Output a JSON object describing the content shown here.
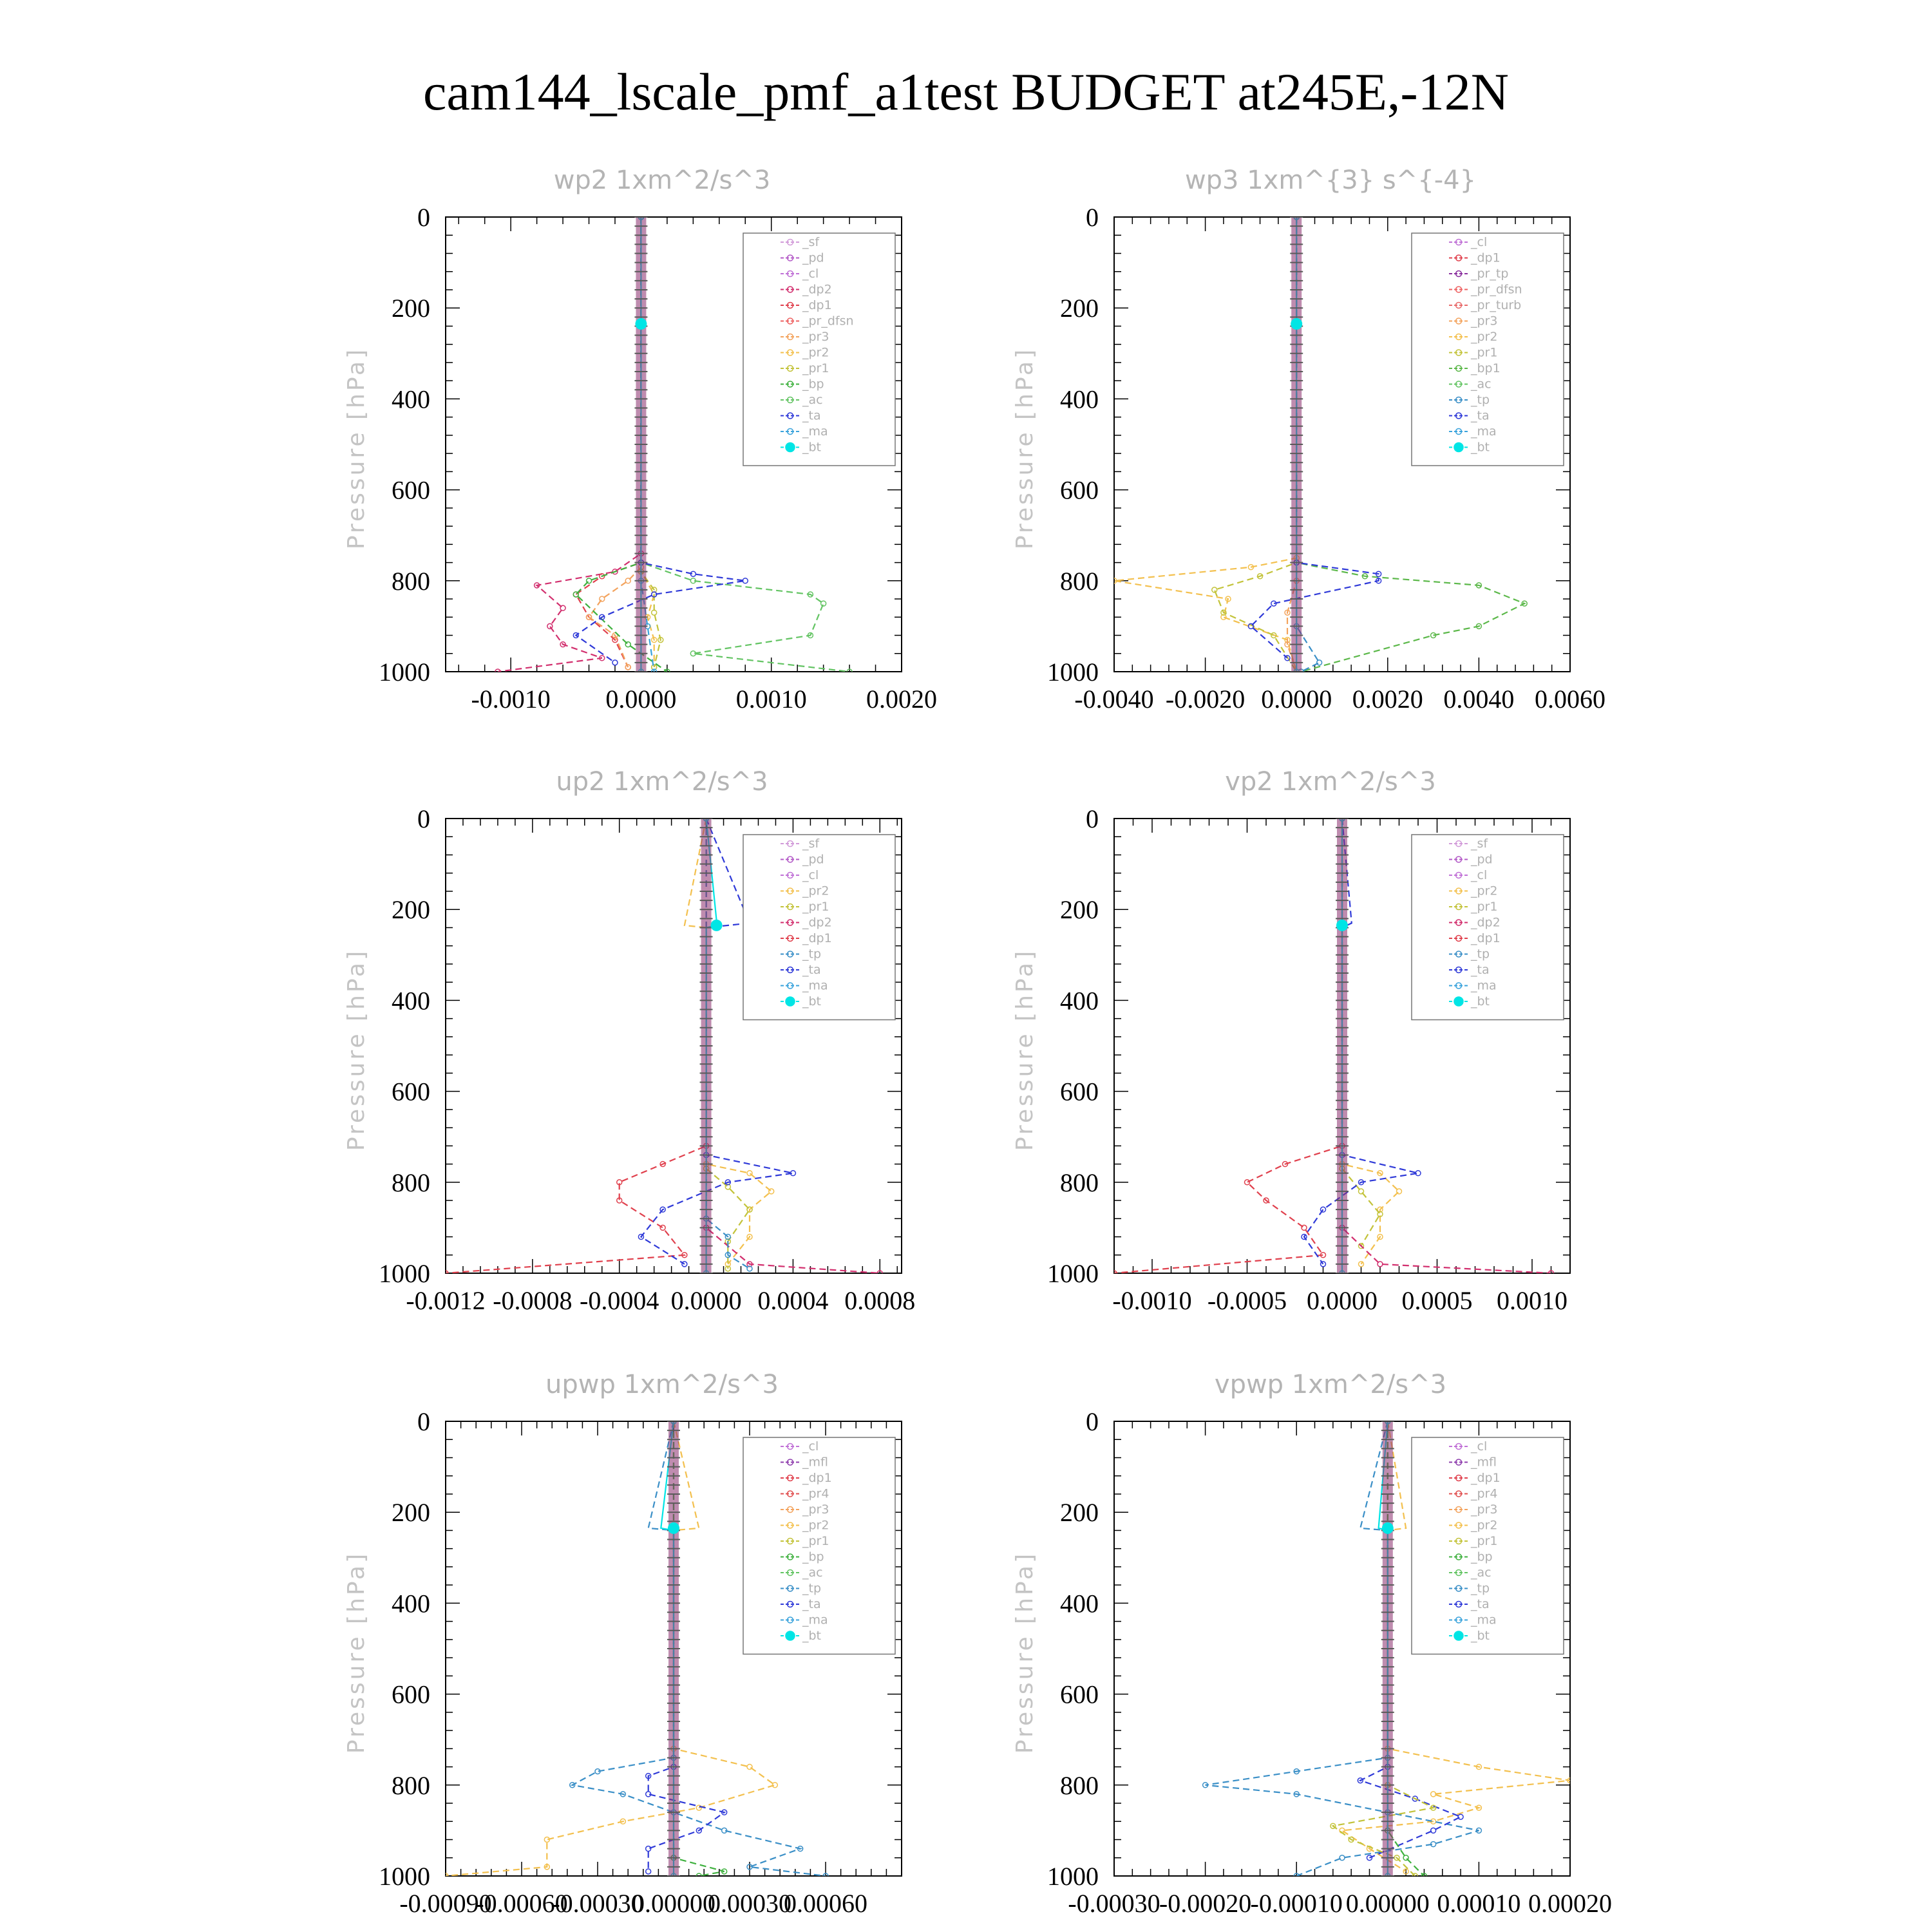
{
  "title": "cam144_lscale_pmf_a1test  BUDGET at245E,-12N",
  "colors": {
    "sf": "#d29bd9",
    "pd": "#b35ac7",
    "cl": "#c071d6",
    "dp2": "#d22f6e",
    "dp1": "#e0404d",
    "pr_dfsn": "#ee6262",
    "pr3": "#f3a35d",
    "pr2": "#f3c04e",
    "pr1": "#c3c33a",
    "bp": "#3fb13f",
    "ac": "#63c463",
    "ta": "#2f3ad8",
    "ma": "#3aa3dc",
    "bt": "#00e5e5",
    "tp": "#3a8fc7",
    "mfl": "#8f3fae",
    "pr4": "#e05050",
    "pr_tp": "#8a2f9e",
    "pr_turb": "#e86a6a",
    "bp1": "#5cb84a"
  },
  "chart_data": [
    {
      "type": "line",
      "title": "wp2  1xm^2/s^3",
      "ylabel": "Pressure [hPa]",
      "ylim": [
        1000,
        0
      ],
      "yticks": [
        "0",
        "200",
        "400",
        "600",
        "800",
        "1000"
      ],
      "xlim": [
        -0.0015,
        0.002
      ],
      "xticks": [
        "-0.0010",
        "0.0000",
        "0.0010",
        "0.0020"
      ],
      "legend": [
        "_sf",
        "_pd",
        "_cl",
        "_dp2",
        "_dp1",
        "_pr_dfsn",
        "_pr3",
        "_pr2",
        "_pr1",
        "_bp",
        "_ac",
        "_ta",
        "_ma",
        "_bt"
      ],
      "legend_position": "top-right",
      "series": [
        {
          "name": "_dp2",
          "x": [
            0,
            0,
            -0.0002,
            -0.0008,
            -0.0006,
            -0.0007,
            -0.0006,
            -0.0003,
            -0.0011
          ],
          "y": [
            0,
            740,
            780,
            810,
            860,
            900,
            940,
            970,
            1000
          ]
        },
        {
          "name": "_dp1",
          "x": [
            0,
            0,
            -0.0003,
            -0.0005,
            -0.0004,
            -0.0002,
            -0.0001
          ],
          "y": [
            0,
            760,
            790,
            830,
            880,
            930,
            990
          ]
        },
        {
          "name": "_pr3",
          "x": [
            0,
            0,
            -0.0001,
            -0.0003,
            -0.0004,
            -0.0002,
            -0.0001
          ],
          "y": [
            0,
            770,
            800,
            840,
            880,
            920,
            990
          ]
        },
        {
          "name": "_pr2",
          "x": [
            0,
            0,
            0.0001,
            5e-05,
            0.0001,
            0.0001
          ],
          "y": [
            0,
            780,
            830,
            880,
            930,
            990
          ]
        },
        {
          "name": "_pr1",
          "x": [
            0,
            0,
            0.0001,
            0.0001,
            0.00015,
            0.0001
          ],
          "y": [
            0,
            780,
            820,
            870,
            930,
            990
          ]
        },
        {
          "name": "_bp",
          "x": [
            0,
            0,
            -0.0004,
            -0.0005,
            -0.0001,
            0.0002
          ],
          "y": [
            0,
            760,
            800,
            830,
            940,
            1000
          ]
        },
        {
          "name": "_ac",
          "x": [
            0,
            0,
            0.0004,
            0.0013,
            0.0014,
            0.0013,
            0.0004,
            0.0016
          ],
          "y": [
            0,
            760,
            800,
            830,
            850,
            920,
            960,
            1000
          ]
        },
        {
          "name": "_ta",
          "x": [
            0,
            0,
            0.0004,
            0.0008,
            0.0001,
            -0.0003,
            -0.0005,
            -0.0002
          ],
          "y": [
            0,
            760,
            785,
            800,
            830,
            880,
            920,
            980
          ]
        },
        {
          "name": "_ma",
          "x": [
            0,
            0,
            5e-05,
            0.0001
          ],
          "y": [
            0,
            800,
            900,
            1000
          ]
        },
        {
          "name": "_bt",
          "x": [
            0,
            0,
            0
          ],
          "y": [
            0,
            230,
            1000
          ]
        }
      ]
    },
    {
      "type": "line",
      "title": "wp3  1xm^{3} s^{-4}",
      "ylabel": "Pressure [hPa]",
      "ylim": [
        1000,
        0
      ],
      "yticks": [
        "0",
        "200",
        "400",
        "600",
        "800",
        "1000"
      ],
      "xlim": [
        -0.004,
        0.006
      ],
      "xticks": [
        "-0.0040",
        "-0.0020",
        "0.0000",
        "0.0020",
        "0.0040",
        "0.0060"
      ],
      "legend": [
        "_cl",
        "_dp1",
        "_pr_tp",
        "_pr_dfsn",
        "_pr_turb",
        "_pr3",
        "_pr2",
        "_pr1",
        "_bp1",
        "_ac",
        "_tp",
        "_ta",
        "_ma",
        "_bt"
      ],
      "legend_position": "top-right",
      "series": [
        {
          "name": "_pr2",
          "x": [
            0,
            0,
            -0.001,
            -0.004,
            -0.0015,
            -0.0016,
            -0.0002,
            0
          ],
          "y": [
            0,
            750,
            770,
            800,
            840,
            880,
            930,
            1000
          ]
        },
        {
          "name": "_pr1",
          "x": [
            0,
            0,
            -0.0008,
            -0.0018,
            -0.0016,
            -0.0005,
            0
          ],
          "y": [
            0,
            760,
            790,
            820,
            870,
            920,
            1000
          ]
        },
        {
          "name": "_bp1",
          "x": [
            0,
            0,
            0.0015,
            0.004,
            0.005,
            0.004,
            0.003,
            0.0001
          ],
          "y": [
            0,
            760,
            790,
            810,
            850,
            900,
            920,
            1000
          ]
        },
        {
          "name": "_ta",
          "x": [
            0,
            0,
            0.0018,
            0.0018,
            -0.0005,
            -0.001,
            -0.0002
          ],
          "y": [
            0,
            760,
            785,
            800,
            850,
            900,
            970
          ]
        },
        {
          "name": "_pr3",
          "x": [
            0,
            0,
            -0.0002,
            -0.0002,
            0
          ],
          "y": [
            0,
            800,
            870,
            940,
            1000
          ]
        },
        {
          "name": "_tp",
          "x": [
            0,
            0,
            0.0005,
            0.0001
          ],
          "y": [
            0,
            900,
            980,
            1000
          ]
        },
        {
          "name": "_bt",
          "x": [
            0,
            0
          ],
          "y": [
            0,
            1000
          ]
        }
      ]
    },
    {
      "type": "line",
      "title": "up2  1xm^2/s^3",
      "ylabel": "Pressure [hPa]",
      "ylim": [
        1000,
        0
      ],
      "yticks": [
        "0",
        "200",
        "400",
        "600",
        "800",
        "1000"
      ],
      "xlim": [
        -0.0012,
        0.0009
      ],
      "xticks": [
        "-0.0012",
        "-0.0008",
        "-0.0004",
        "0.0000",
        "0.0004",
        "0.0008"
      ],
      "legend": [
        "_sf",
        "_pd",
        "_cl",
        "_pr2",
        "_pr1",
        "_dp2",
        "_dp1",
        "_tp",
        "_ta",
        "_ma",
        "_bt"
      ],
      "legend_position": "top-right",
      "series": [
        {
          "name": "_dp1",
          "x": [
            0,
            0,
            -0.0002,
            -0.0004,
            -0.0004,
            -0.0002,
            -0.0001,
            -0.0012
          ],
          "y": [
            0,
            720,
            760,
            800,
            840,
            900,
            960,
            1000
          ]
        },
        {
          "name": "_pr2",
          "x": [
            0,
            -0.0001,
            0,
            0,
            0.0002,
            0.0003,
            0.0002,
            0.0002,
            0.0001
          ],
          "y": [
            0,
            235,
            240,
            760,
            780,
            820,
            860,
            920,
            980
          ]
        },
        {
          "name": "_pr1",
          "x": [
            0,
            0,
            0.0001,
            0.0002,
            0.0001,
            0.0001
          ],
          "y": [
            0,
            770,
            810,
            860,
            930,
            990
          ]
        },
        {
          "name": "_ta",
          "x": [
            0,
            0.0002,
            0,
            0,
            0.0004,
            0.0001,
            -0.0002,
            -0.0003,
            -0.0001
          ],
          "y": [
            0,
            230,
            240,
            740,
            780,
            800,
            860,
            920,
            980
          ]
        },
        {
          "name": "_dp2",
          "x": [
            0,
            0,
            0.0002,
            0.0008
          ],
          "y": [
            0,
            900,
            980,
            1000
          ]
        },
        {
          "name": "_tp",
          "x": [
            0,
            0,
            0.0001,
            0.0001,
            0.0002
          ],
          "y": [
            0,
            880,
            920,
            960,
            990
          ]
        },
        {
          "name": "_bt",
          "x": [
            0,
            5e-05,
            0,
            0
          ],
          "y": [
            0,
            235,
            240,
            1000
          ]
        }
      ]
    },
    {
      "type": "line",
      "title": "vp2  1xm^2/s^3",
      "ylabel": "Pressure [hPa]",
      "ylim": [
        1000,
        0
      ],
      "yticks": [
        "0",
        "200",
        "400",
        "600",
        "800",
        "1000"
      ],
      "xlim": [
        -0.0012,
        0.0012
      ],
      "xticks": [
        "-0.0010",
        "-0.0005",
        "0.0000",
        "0.0005",
        "0.0010"
      ],
      "legend": [
        "_sf",
        "_pd",
        "_cl",
        "_pr2",
        "_pr1",
        "_dp2",
        "_dp1",
        "_tp",
        "_ta",
        "_ma",
        "_bt"
      ],
      "legend_position": "top-right",
      "series": [
        {
          "name": "_dp1",
          "x": [
            0,
            0,
            -0.0003,
            -0.0005,
            -0.0004,
            -0.0002,
            -0.0001,
            -0.0012
          ],
          "y": [
            0,
            720,
            760,
            800,
            840,
            900,
            960,
            1000
          ]
        },
        {
          "name": "_pr2",
          "x": [
            0,
            0,
            0.0002,
            0.0003,
            0.0002,
            0.0002,
            0.0001
          ],
          "y": [
            0,
            760,
            780,
            820,
            860,
            920,
            980
          ]
        },
        {
          "name": "_pr1",
          "x": [
            0,
            0,
            0.0001,
            0.0002,
            0.0001
          ],
          "y": [
            0,
            770,
            820,
            870,
            940
          ]
        },
        {
          "name": "_ta",
          "x": [
            0,
            5e-05,
            0,
            0,
            0.0004,
            0.0001,
            -0.0001,
            -0.0002,
            -0.0001
          ],
          "y": [
            0,
            230,
            240,
            740,
            780,
            800,
            860,
            920,
            980
          ]
        },
        {
          "name": "_dp2",
          "x": [
            0,
            0,
            0.0002,
            0.0011
          ],
          "y": [
            0,
            900,
            980,
            1000
          ]
        },
        {
          "name": "_bt",
          "x": [
            0,
            0
          ],
          "y": [
            0,
            1000
          ]
        }
      ]
    },
    {
      "type": "line",
      "title": "upwp  1xm^2/s^3",
      "ylabel": "Pressure [hPa]",
      "ylim": [
        1000,
        0
      ],
      "yticks": [
        "0",
        "200",
        "400",
        "600",
        "800",
        "1000"
      ],
      "xlim": [
        -0.0009,
        0.0009
      ],
      "xticks": [
        "-0.00090",
        "-0.00060",
        "-0.00030",
        "0.00000",
        "0.00030",
        "0.00060"
      ],
      "legend": [
        "_cl",
        "_mfl",
        "_dp1",
        "_pr4",
        "_pr3",
        "_pr2",
        "_pr1",
        "_bp",
        "_ac",
        "_tp",
        "_ta",
        "_ma",
        "_bt"
      ],
      "legend_position": "top-right",
      "series": [
        {
          "name": "_pr2",
          "x": [
            0,
            0.0001,
            0,
            0,
            0.0003,
            0.0004,
            0.0001,
            -0.0002,
            -0.0005,
            -0.0005,
            -0.0009
          ],
          "y": [
            0,
            235,
            240,
            720,
            760,
            800,
            850,
            880,
            920,
            980,
            1000
          ]
        },
        {
          "name": "_tp",
          "x": [
            0,
            -0.0001,
            0,
            0,
            -0.0003,
            -0.0004,
            -0.0002,
            0,
            0.0002,
            0.0005,
            0.0003,
            0.0006
          ],
          "y": [
            0,
            235,
            240,
            740,
            770,
            800,
            820,
            860,
            900,
            940,
            980,
            1000
          ]
        },
        {
          "name": "_ta",
          "x": [
            0,
            0,
            -0.0001,
            -0.0001,
            0.0002,
            0.0001,
            -0.0001,
            -0.0001
          ],
          "y": [
            0,
            760,
            780,
            820,
            860,
            900,
            940,
            990
          ]
        },
        {
          "name": "_bp",
          "x": [
            0,
            0,
            0.0002,
            0.0001
          ],
          "y": [
            0,
            960,
            990,
            1000
          ]
        },
        {
          "name": "_bt",
          "x": [
            0,
            -5e-05,
            0,
            0
          ],
          "y": [
            0,
            235,
            240,
            1000
          ]
        }
      ]
    },
    {
      "type": "line",
      "title": "vpwp  1xm^2/s^3",
      "ylabel": "Pressure [hPa]",
      "ylim": [
        1000,
        0
      ],
      "yticks": [
        "0",
        "200",
        "400",
        "600",
        "800",
        "1000"
      ],
      "xlim": [
        -0.0003,
        0.0002
      ],
      "xticks": [
        "-0.00030",
        "-0.00020",
        "-0.00010",
        "0.00000",
        "0.00010",
        "0.00020"
      ],
      "legend": [
        "_cl",
        "_mfl",
        "_dp1",
        "_pr4",
        "_pr3",
        "_pr2",
        "_pr1",
        "_bp",
        "_ac",
        "_tp",
        "_ta",
        "_ma",
        "_bt"
      ],
      "legend_position": "top-right",
      "series": [
        {
          "name": "_pr2",
          "x": [
            0,
            2e-05,
            0,
            0,
            0.0001,
            0.0002,
            5e-05,
            0.0001,
            5e-05,
            -5e-05,
            -2e-05,
            2e-05
          ],
          "y": [
            0,
            235,
            240,
            720,
            760,
            790,
            820,
            850,
            880,
            900,
            940,
            990
          ]
        },
        {
          "name": "_tp",
          "x": [
            0,
            -3e-05,
            0,
            0,
            -0.0001,
            -0.0002,
            -0.0001,
            0,
            0.0001,
            5e-05,
            -5e-05,
            -0.0001
          ],
          "y": [
            0,
            235,
            240,
            740,
            770,
            800,
            820,
            860,
            900,
            930,
            960,
            1000
          ]
        },
        {
          "name": "_ta",
          "x": [
            0,
            0,
            -3e-05,
            3e-05,
            8e-05,
            5e-05,
            -2e-05
          ],
          "y": [
            0,
            760,
            790,
            830,
            870,
            900,
            960
          ]
        },
        {
          "name": "_pr1",
          "x": [
            0,
            0,
            5e-05,
            -6e-05,
            -4e-05,
            1e-05,
            3e-05
          ],
          "y": [
            0,
            800,
            850,
            890,
            920,
            960,
            1000
          ]
        },
        {
          "name": "_bp",
          "x": [
            0,
            0,
            2e-05,
            4e-05
          ],
          "y": [
            0,
            900,
            960,
            1000
          ]
        },
        {
          "name": "_bt",
          "x": [
            0,
            -1e-05,
            0,
            0
          ],
          "y": [
            0,
            235,
            240,
            1000
          ]
        }
      ]
    }
  ]
}
